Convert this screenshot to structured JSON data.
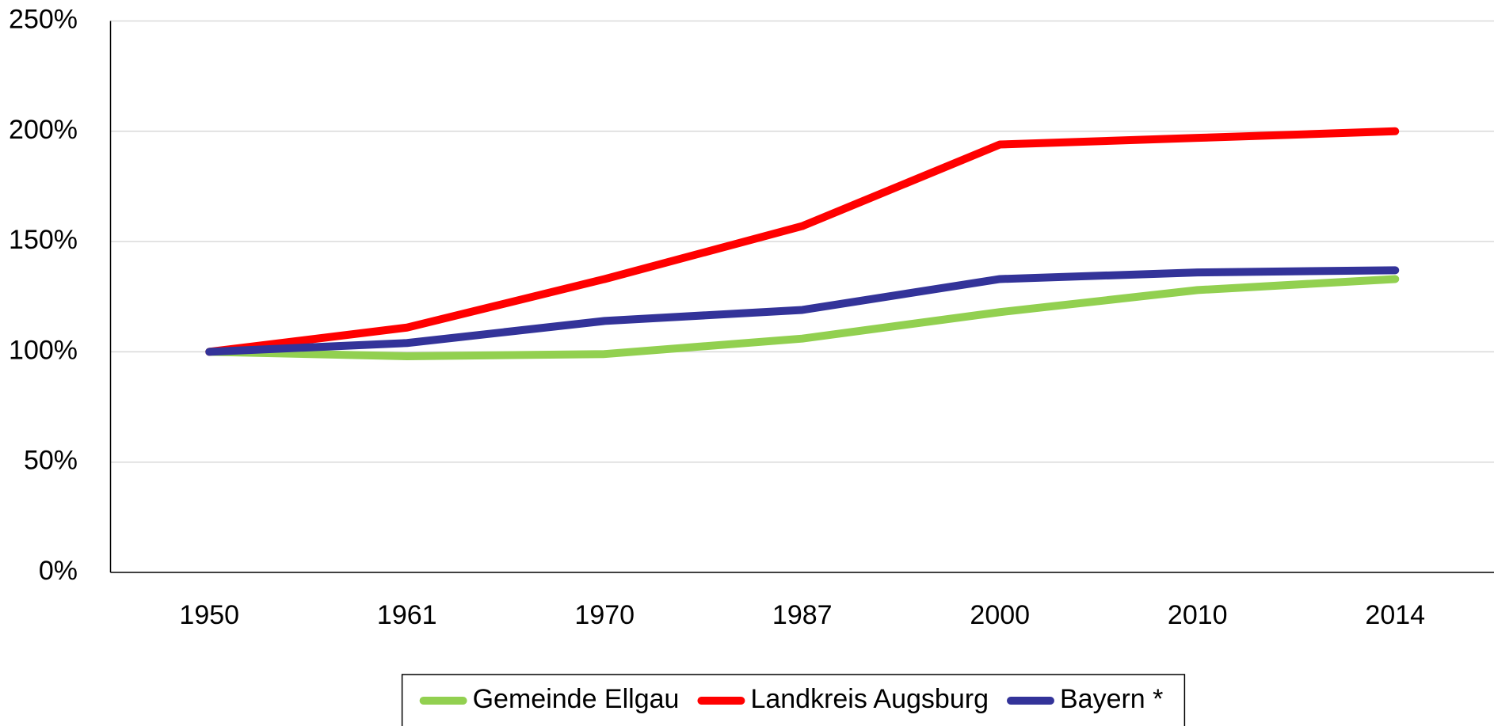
{
  "chart_data": {
    "type": "line",
    "categories": [
      "1950",
      "1961",
      "1970",
      "1987",
      "2000",
      "2010",
      "2014"
    ],
    "series": [
      {
        "name": "Gemeinde Ellgau",
        "color": "#92d050",
        "values": [
          100,
          98,
          99,
          106,
          118,
          128,
          133
        ]
      },
      {
        "name": "Landkreis Augsburg",
        "color": "#ff0000",
        "values": [
          100,
          111,
          133,
          157,
          194,
          197,
          200
        ]
      },
      {
        "name": "Bayern *",
        "color": "#333399",
        "values": [
          100,
          104,
          114,
          119,
          133,
          136,
          137
        ]
      }
    ],
    "ylim": [
      0,
      250
    ],
    "yticks": [
      {
        "value": 0,
        "label": "0%"
      },
      {
        "value": 50,
        "label": "50%"
      },
      {
        "value": 100,
        "label": "100%"
      },
      {
        "value": 150,
        "label": "150%"
      },
      {
        "value": 200,
        "label": "200%"
      },
      {
        "value": 250,
        "label": "250%"
      }
    ],
    "grid": true,
    "legend": "bottom"
  }
}
